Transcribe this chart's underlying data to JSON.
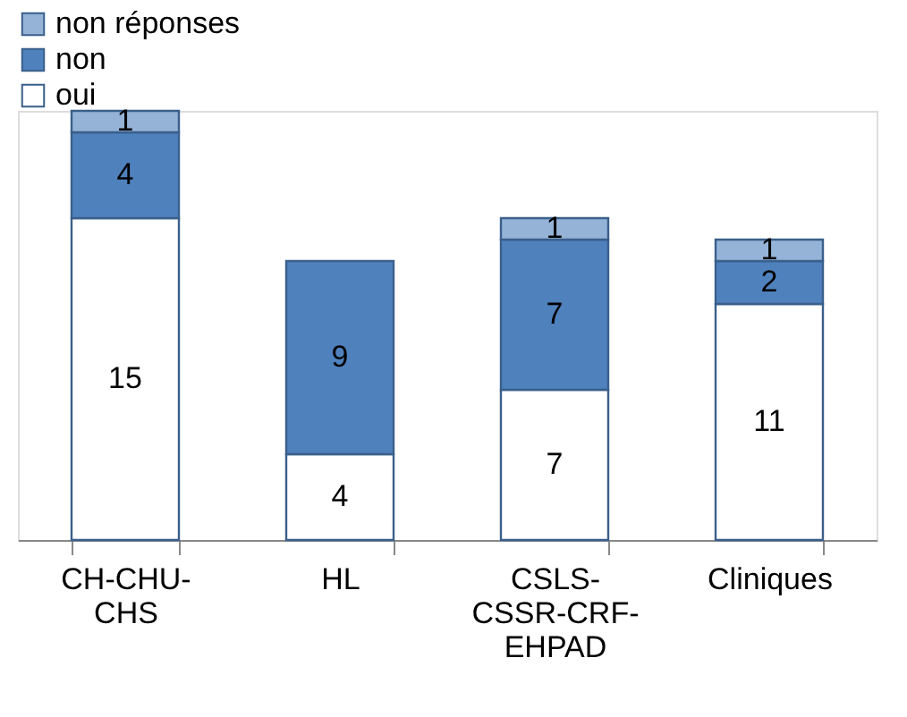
{
  "chart_data": {
    "type": "bar",
    "stacked": true,
    "data_labels": true,
    "legend": "top",
    "grid": false,
    "categories": [
      "CH-CHU-CHS",
      "HL",
      "CSLS-CSSR-CRF-EHPAD",
      "Cliniques"
    ],
    "series": [
      {
        "name": "oui",
        "color": "#ffffff",
        "values": [
          15,
          4,
          7,
          11
        ]
      },
      {
        "name": "non",
        "color": "#4f81bd",
        "values": [
          4,
          9,
          7,
          2
        ]
      },
      {
        "name": "non réponses",
        "color": "#95b3d7",
        "values": [
          1,
          null,
          1,
          1
        ]
      }
    ]
  }
}
